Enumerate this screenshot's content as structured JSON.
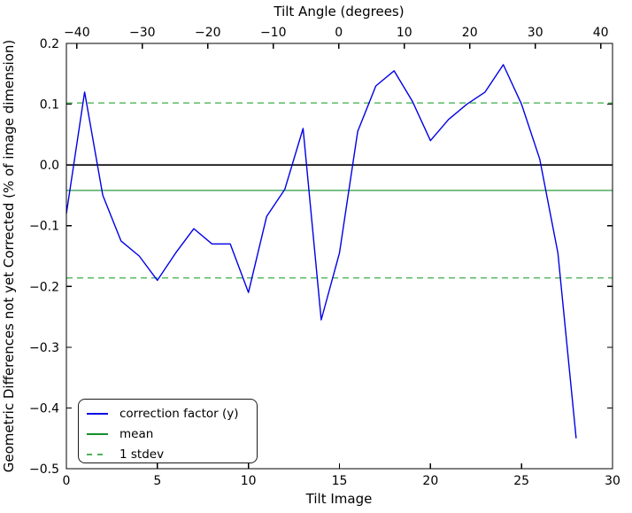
{
  "figure": {
    "top_axis_label": "Tilt Angle (degrees)",
    "bottom_axis_label": "Tilt Image",
    "left_axis_label": "Geometric Differences not yet Corrected (% of image dimension)"
  },
  "legend": {
    "position": "lower left",
    "items": [
      {
        "label": "correction factor (y)",
        "color": "#0000e6",
        "style": "solid"
      },
      {
        "label": "mean",
        "color": "#158f2c",
        "style": "solid"
      },
      {
        "label": "1 stdev",
        "color": "#4db45a",
        "style": "dashed"
      }
    ]
  },
  "chart_data": {
    "type": "line",
    "title": "",
    "xlabel": "Tilt Image",
    "ylabel": "Geometric Differences not yet Corrected (% of image dimension)",
    "top_xlabel": "Tilt Angle (degrees)",
    "xlim": [
      0,
      30
    ],
    "ylim": [
      -0.5,
      0.2
    ],
    "top_xlim": [
      -41.6,
      41.8
    ],
    "grid": false,
    "x": [
      0,
      1,
      2,
      3,
      4,
      5,
      6,
      7,
      8,
      9,
      10,
      11,
      12,
      13,
      14,
      15,
      16,
      17,
      18,
      19,
      20,
      21,
      22,
      23,
      24,
      25,
      26,
      27,
      28
    ],
    "series": [
      {
        "name": "correction factor (y)",
        "color": "#0000e6",
        "values": [
          -0.08,
          0.12,
          -0.05,
          -0.125,
          -0.15,
          -0.19,
          -0.145,
          -0.105,
          -0.13,
          -0.13,
          -0.21,
          -0.085,
          -0.04,
          0.06,
          -0.255,
          -0.145,
          0.055,
          0.13,
          0.155,
          0.105,
          0.04,
          0.075,
          0.1,
          0.12,
          0.165,
          0.1,
          0.01,
          -0.145,
          -0.45
        ]
      }
    ],
    "statistics": {
      "mean": -0.042,
      "stdev": 0.144
    },
    "reference_lines": [
      {
        "name": "zero-line",
        "value": 0.0,
        "color": "#000000",
        "dashed": false,
        "width": 1.6
      },
      {
        "name": "mean-line",
        "value": -0.042,
        "color": "#158f2c",
        "dashed": false,
        "width": 1.2
      },
      {
        "name": "stdev-plus-line",
        "value": 0.102,
        "color": "#4db45a",
        "dashed": true,
        "width": 1.3
      },
      {
        "name": "stdev-minus-line",
        "value": -0.186,
        "color": "#4db45a",
        "dashed": true,
        "width": 1.3
      }
    ],
    "x_ticks": {
      "values": [
        0,
        5,
        10,
        15,
        20,
        25,
        30
      ],
      "labels": [
        "0",
        "5",
        "10",
        "15",
        "20",
        "25",
        "30"
      ]
    },
    "y_ticks": {
      "values": [
        0.2,
        0.1,
        0.0,
        -0.1,
        -0.2,
        -0.3,
        -0.4,
        -0.5
      ],
      "labels": [
        "0.2",
        "0.1",
        "0.0",
        "−0.1",
        "−0.2",
        "−0.3",
        "−0.4",
        "−0.5"
      ]
    },
    "top_ticks": {
      "values": [
        -40,
        -30,
        -20,
        -10,
        0,
        10,
        20,
        30,
        40
      ],
      "labels": [
        "−40",
        "−30",
        "−20",
        "−10",
        "0",
        "10",
        "20",
        "30",
        "40"
      ]
    }
  }
}
